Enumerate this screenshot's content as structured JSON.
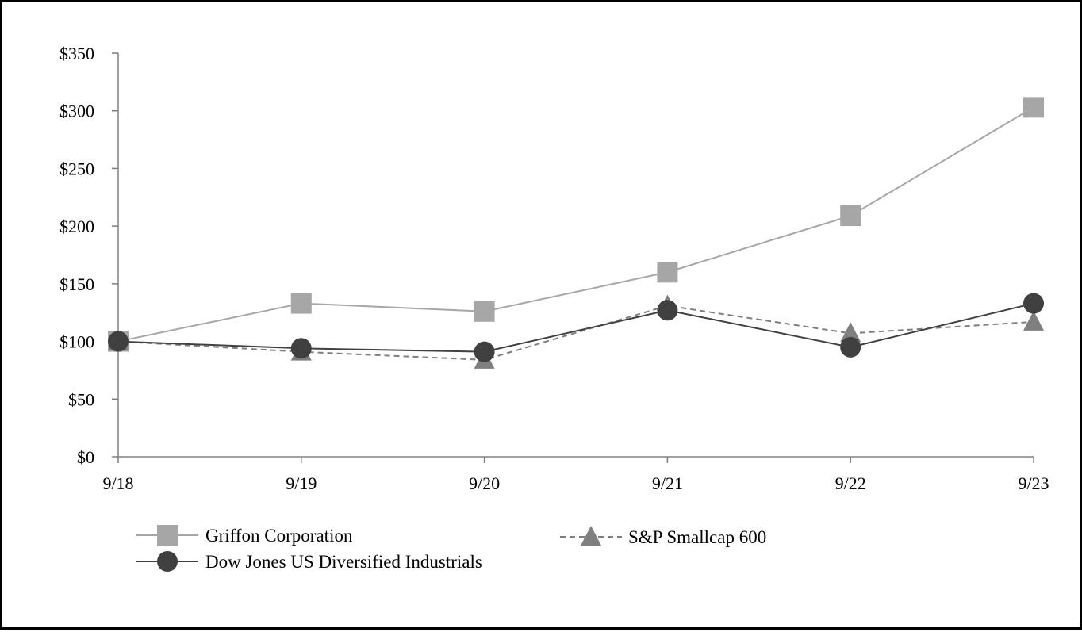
{
  "chart_data": {
    "type": "line",
    "title": "",
    "xlabel": "",
    "ylabel": "",
    "categories": [
      "9/18",
      "9/19",
      "9/20",
      "9/21",
      "9/22",
      "9/23"
    ],
    "ylim": [
      0,
      350
    ],
    "y_ticks": [
      0,
      50,
      100,
      150,
      200,
      250,
      300,
      350
    ],
    "y_tick_labels": [
      "$0",
      "$50",
      "$100",
      "$150",
      "$200",
      "$250",
      "$300",
      "$350"
    ],
    "grid": false,
    "legend_position": "bottom",
    "series": [
      {
        "name": "Griffon Corporation",
        "values": [
          100,
          133,
          126,
          160,
          209,
          303
        ],
        "color": "#a6a6a6",
        "marker": "square",
        "line_style": "solid"
      },
      {
        "name": "S&P Smallcap 600",
        "values": [
          100,
          91,
          84,
          131,
          107,
          117
        ],
        "color": "#7f7f7f",
        "marker": "triangle",
        "line_style": "dashed"
      },
      {
        "name": "Dow Jones US Diversified Industrials",
        "values": [
          100,
          94,
          91,
          127,
          95,
          133
        ],
        "color": "#404040",
        "marker": "circle",
        "line_style": "solid"
      }
    ]
  }
}
